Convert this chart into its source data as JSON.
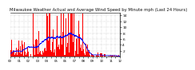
{
  "title": "Milwaukee Weather Actual and Average Wind Speed by Minute mph (Last 24 Hours)",
  "background_color": "#ffffff",
  "plot_background": "#ffffff",
  "grid_color": "#b0b0b0",
  "bar_color": "#ff0000",
  "line_color": "#0000ff",
  "n_points": 1440,
  "ylim": [
    0,
    15
  ],
  "ytick_values": [
    2,
    4,
    6,
    8,
    10,
    12,
    14
  ],
  "title_fontsize": 3.8,
  "tick_fontsize": 3.2,
  "seed": 7
}
